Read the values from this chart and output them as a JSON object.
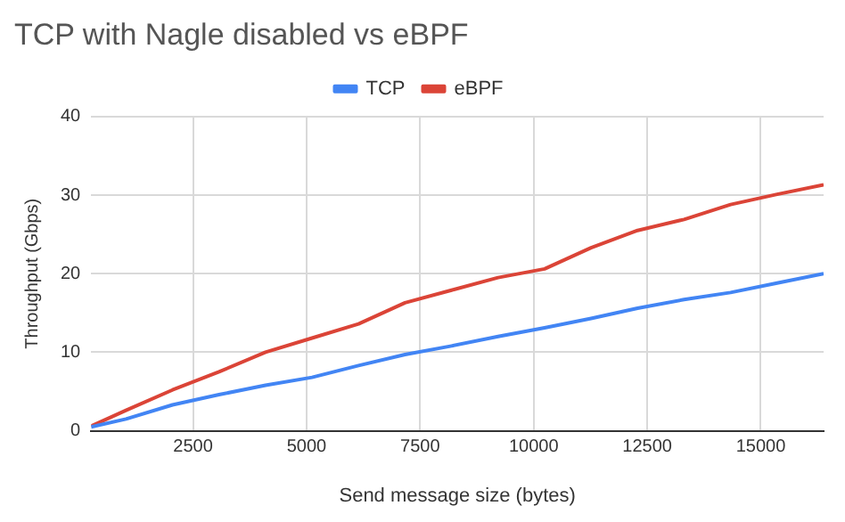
{
  "chart_data": {
    "type": "line",
    "title": "TCP with Nagle disabled vs eBPF",
    "xlabel": "Send message size (bytes)",
    "ylabel": "Throughput (Gbps)",
    "x": [
      256,
      1024,
      2048,
      3072,
      4096,
      5120,
      6144,
      7168,
      8192,
      9216,
      10240,
      11264,
      12288,
      13312,
      14336,
      15360,
      16384
    ],
    "series": [
      {
        "name": "TCP",
        "color": "#4285f4",
        "values": [
          0.5,
          1.5,
          3.3,
          4.6,
          5.8,
          6.8,
          8.3,
          9.7,
          10.8,
          12.0,
          13.1,
          14.3,
          15.6,
          16.7,
          17.6,
          18.8,
          20.0
        ]
      },
      {
        "name": "eBPF",
        "color": "#db4437",
        "values": [
          0.6,
          2.6,
          5.2,
          7.5,
          10.0,
          11.8,
          13.6,
          16.3,
          17.9,
          19.5,
          20.6,
          23.3,
          25.5,
          26.9,
          28.8,
          30.1,
          31.3
        ]
      }
    ],
    "xlim": [
      256,
      16384
    ],
    "xticks": [
      2500,
      5000,
      7500,
      10000,
      12500,
      15000
    ],
    "ylim": [
      0,
      40
    ],
    "yticks": [
      0,
      10,
      20,
      30,
      40
    ],
    "grid": true,
    "legend": "top",
    "marker": "none",
    "line_style": "solid"
  }
}
